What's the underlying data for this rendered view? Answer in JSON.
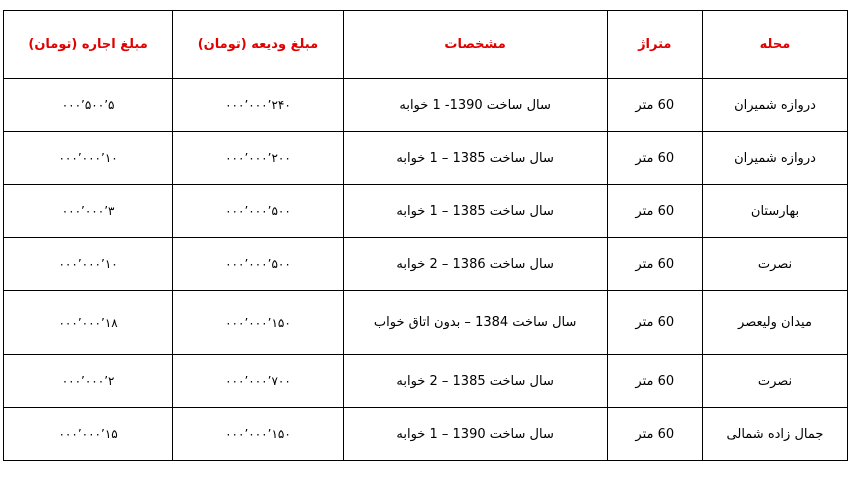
{
  "headers": [
    "محله",
    "متراژ",
    "مشخصات",
    "مبلغ ودیعه (تومان)",
    "مبلغ اجاره (تومان)"
  ],
  "header_color": "#e00000",
  "rows": [
    {
      "area": "دروازه شمیران",
      "size": "60 متر",
      "specs": "سال ساخت 1390- 1 خوابه",
      "deposit": "۲۴۰’۰۰۰’۰۰۰",
      "rent": "۵’۵۰۰’۰۰۰"
    },
    {
      "area": "دروازه شمیران",
      "size": "60 متر",
      "specs": "سال ساخت 1385 – 1 خوابه",
      "deposit": "۲۰۰’۰۰۰’۰۰۰",
      "rent": "۱۰’۰۰۰’۰۰۰"
    },
    {
      "area": "بهارستان",
      "size": "60 متر",
      "specs": "سال ساخت 1385 – 1 خوابه",
      "deposit": "۵۰۰’۰۰۰’۰۰۰",
      "rent": "۳’۰۰۰’۰۰۰"
    },
    {
      "area": "نصرت",
      "size": "60 متر",
      "specs": "سال ساخت 1386 – 2 خوابه",
      "deposit": "۵۰۰’۰۰۰’۰۰۰",
      "rent": "۱۰’۰۰۰’۰۰۰"
    },
    {
      "area": "میدان ولیعصر",
      "size": "60 متر",
      "specs": "سال ساخت 1384 – بدون  اتاق خواب",
      "deposit": "۱۵۰’۰۰۰’۰۰۰",
      "rent": "۱۸’۰۰۰’۰۰۰"
    },
    {
      "area": "نصرت",
      "size": "60 متر",
      "specs": "سال ساخت 1385 – 2 خوابه",
      "deposit": "۷۰۰’۰۰۰’۰۰۰",
      "rent": "۲’۰۰۰’۰۰۰"
    },
    {
      "area": "جمال زاده شمالی",
      "size": "60 متر",
      "specs": "سال ساخت 1390 – 1 خوابه",
      "deposit": "۱۵۰’۰۰۰’۰۰۰",
      "rent": "۱۵’۰۰۰’۰۰۰"
    }
  ]
}
